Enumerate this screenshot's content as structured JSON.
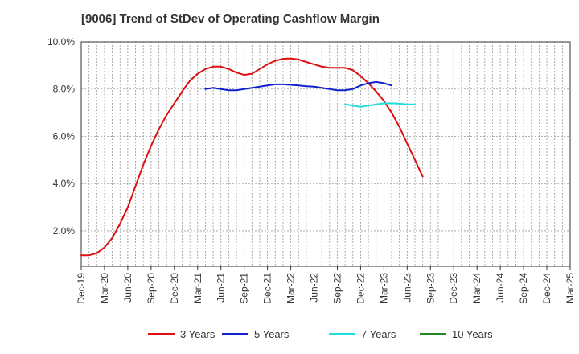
{
  "chart_data": {
    "type": "line",
    "title": "[9006]  Trend of StDev of Operating Cashflow Margin",
    "xlabel": "",
    "ylabel": "",
    "ylim": [
      0.5,
      10.0
    ],
    "yticks": [
      "10.0%",
      "8.0%",
      "6.0%",
      "4.0%",
      "2.0%"
    ],
    "ytick_values": [
      10,
      8,
      6,
      4,
      2
    ],
    "x_tick_labels": [
      "Dec-19",
      "Mar-20",
      "Jun-20",
      "Sep-20",
      "Dec-20",
      "Mar-21",
      "Jun-21",
      "Sep-21",
      "Dec-21",
      "Mar-22",
      "Jun-22",
      "Sep-22",
      "Dec-22",
      "Mar-23",
      "Jun-23",
      "Sep-23",
      "Dec-23",
      "Mar-24",
      "Jun-24",
      "Sep-24",
      "Dec-24",
      "Mar-25"
    ],
    "grid": true,
    "legend_position": "bottom",
    "series": [
      {
        "name": "3 Years",
        "color": "#dd1111",
        "start_index": 0,
        "values": [
          0.97,
          0.97,
          1.05,
          1.3,
          1.7,
          2.3,
          3.0,
          3.9,
          4.8,
          5.6,
          6.3,
          6.9,
          7.4,
          7.9,
          8.35,
          8.65,
          8.85,
          8.95,
          8.95,
          8.85,
          8.7,
          8.6,
          8.65,
          8.85,
          9.05,
          9.2,
          9.28,
          9.3,
          9.25,
          9.15,
          9.05,
          8.95,
          8.9,
          8.9,
          8.9,
          8.8,
          8.55,
          8.25,
          7.9,
          7.5,
          7.0,
          6.4,
          5.7,
          5.0,
          4.3
        ]
      },
      {
        "name": "5 Years",
        "color": "#1122cc",
        "start_index": 16,
        "values": [
          8.0,
          8.05,
          8.0,
          7.95,
          7.95,
          8.0,
          8.05,
          8.1,
          8.15,
          8.2,
          8.2,
          8.18,
          8.15,
          8.12,
          8.1,
          8.05,
          8.0,
          7.95,
          7.95,
          8.0,
          8.15,
          8.25,
          8.3,
          8.25,
          8.15
        ]
      },
      {
        "name": "7 Years",
        "color": "#22dddd",
        "start_index": 34,
        "values": [
          7.35,
          7.3,
          7.25,
          7.3,
          7.35,
          7.4,
          7.4,
          7.38,
          7.35,
          7.35
        ]
      },
      {
        "name": "10 Years",
        "color": "#228822",
        "start_index": 0,
        "values": []
      }
    ]
  }
}
